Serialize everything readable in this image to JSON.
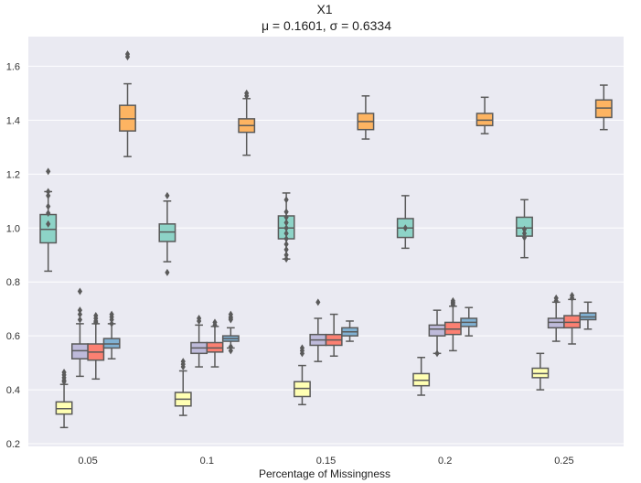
{
  "chart_data": {
    "type": "box",
    "title": "X1",
    "subtitle": "μ = 0.1601, σ = 0.6334",
    "xlabel": "Percentage of Missingness",
    "ylabel": "",
    "ylim": [
      0.19,
      1.71
    ],
    "yticks": [
      0.2,
      0.4,
      0.6,
      0.8,
      1.0,
      1.2,
      1.4,
      1.6
    ],
    "categories": [
      "0.05",
      "0.1",
      "0.15",
      "0.2",
      "0.25"
    ],
    "grid": true,
    "legend": "none",
    "series": [
      {
        "color": "#8dd3c7",
        "boxes": [
          {
            "whislo": 0.84,
            "q1": 0.945,
            "med": 0.995,
            "q3": 1.05,
            "whishi": 1.135,
            "fliers": [
              1.21,
              1.135,
              1.12,
              1.08,
              1.055,
              1.015
            ]
          },
          {
            "whislo": 0.875,
            "q1": 0.95,
            "med": 0.985,
            "q3": 1.015,
            "whishi": 1.1,
            "fliers": [
              1.12,
              0.835
            ]
          },
          {
            "whislo": 0.885,
            "q1": 0.96,
            "med": 1.0,
            "q3": 1.045,
            "whishi": 1.13,
            "fliers": [
              1.105,
              1.06,
              1.04,
              1.02,
              1.0,
              0.98,
              0.96,
              0.94,
              0.92,
              0.9,
              0.885
            ]
          },
          {
            "whislo": 0.925,
            "q1": 0.965,
            "med": 1.0,
            "q3": 1.035,
            "whishi": 1.12,
            "fliers": [
              1.0
            ]
          },
          {
            "whislo": 0.89,
            "q1": 0.97,
            "med": 1.0,
            "q3": 1.04,
            "whishi": 1.105,
            "fliers": [
              0.995,
              0.98,
              0.965
            ]
          }
        ]
      },
      {
        "color": "#ffffb3",
        "boxes": [
          {
            "whislo": 0.26,
            "q1": 0.31,
            "med": 0.33,
            "q3": 0.355,
            "whishi": 0.42,
            "fliers": [
              0.465,
              0.455,
              0.445,
              0.435,
              0.43
            ]
          },
          {
            "whislo": 0.305,
            "q1": 0.34,
            "med": 0.365,
            "q3": 0.39,
            "whishi": 0.47,
            "fliers": [
              0.505,
              0.495,
              0.485
            ]
          },
          {
            "whislo": 0.345,
            "q1": 0.375,
            "med": 0.405,
            "q3": 0.43,
            "whishi": 0.49,
            "fliers": [
              0.555,
              0.545,
              0.535
            ]
          },
          {
            "whislo": 0.38,
            "q1": 0.415,
            "med": 0.435,
            "q3": 0.46,
            "whishi": 0.52,
            "fliers": []
          },
          {
            "whislo": 0.4,
            "q1": 0.445,
            "med": 0.46,
            "q3": 0.48,
            "whishi": 0.535,
            "fliers": []
          }
        ]
      },
      {
        "color": "#bebada",
        "boxes": [
          {
            "whislo": 0.45,
            "q1": 0.515,
            "med": 0.545,
            "q3": 0.57,
            "whishi": 0.645,
            "fliers": [
              0.765,
              0.695,
              0.68,
              0.66
            ]
          },
          {
            "whislo": 0.485,
            "q1": 0.535,
            "med": 0.555,
            "q3": 0.575,
            "whishi": 0.64,
            "fliers": [
              0.665,
              0.655
            ]
          },
          {
            "whislo": 0.505,
            "q1": 0.565,
            "med": 0.585,
            "q3": 0.605,
            "whishi": 0.665,
            "fliers": [
              0.725
            ]
          },
          {
            "whislo": 0.535,
            "q1": 0.6,
            "med": 0.625,
            "q3": 0.64,
            "whishi": 0.695,
            "fliers": [
              0.535
            ]
          },
          {
            "whislo": 0.58,
            "q1": 0.63,
            "med": 0.65,
            "q3": 0.665,
            "whishi": 0.725,
            "fliers": [
              0.74,
              0.73
            ]
          }
        ]
      },
      {
        "color": "#fb8072",
        "boxes": [
          {
            "whislo": 0.44,
            "q1": 0.51,
            "med": 0.54,
            "q3": 0.57,
            "whishi": 0.645,
            "fliers": [
              0.675,
              0.665,
              0.655,
              0.65
            ]
          },
          {
            "whislo": 0.485,
            "q1": 0.54,
            "med": 0.555,
            "q3": 0.575,
            "whishi": 0.635,
            "fliers": [
              0.65,
              0.64
            ]
          },
          {
            "whislo": 0.525,
            "q1": 0.565,
            "med": 0.585,
            "q3": 0.605,
            "whishi": 0.68,
            "fliers": []
          },
          {
            "whislo": 0.545,
            "q1": 0.605,
            "med": 0.625,
            "q3": 0.65,
            "whishi": 0.71,
            "fliers": [
              0.73,
              0.725,
              0.72,
              0.715
            ]
          },
          {
            "whislo": 0.57,
            "q1": 0.63,
            "med": 0.65,
            "q3": 0.675,
            "whishi": 0.735,
            "fliers": [
              0.75,
              0.74
            ]
          }
        ]
      },
      {
        "color": "#80b1d3",
        "boxes": [
          {
            "whislo": 0.515,
            "q1": 0.555,
            "med": 0.57,
            "q3": 0.59,
            "whishi": 0.645,
            "fliers": [
              0.68,
              0.67,
              0.66,
              0.645
            ]
          },
          {
            "whislo": 0.555,
            "q1": 0.58,
            "med": 0.59,
            "q3": 0.6,
            "whishi": 0.63,
            "fliers": [
              0.68,
              0.67,
              0.665,
              0.66,
              0.56,
              0.545
            ]
          },
          {
            "whislo": 0.58,
            "q1": 0.6,
            "med": 0.615,
            "q3": 0.63,
            "whishi": 0.655,
            "fliers": []
          },
          {
            "whislo": 0.6,
            "q1": 0.635,
            "med": 0.65,
            "q3": 0.665,
            "whishi": 0.705,
            "fliers": []
          },
          {
            "whislo": 0.625,
            "q1": 0.66,
            "med": 0.67,
            "q3": 0.685,
            "whishi": 0.725,
            "fliers": []
          }
        ]
      },
      {
        "color": "#fdb462",
        "boxes": [
          {
            "whislo": 1.265,
            "q1": 1.36,
            "med": 1.405,
            "q3": 1.455,
            "whishi": 1.535,
            "fliers": [
              1.645,
              1.635
            ]
          },
          {
            "whislo": 1.27,
            "q1": 1.355,
            "med": 1.38,
            "q3": 1.405,
            "whishi": 1.48,
            "fliers": [
              1.5,
              1.49
            ]
          },
          {
            "whislo": 1.33,
            "q1": 1.365,
            "med": 1.395,
            "q3": 1.425,
            "whishi": 1.49,
            "fliers": []
          },
          {
            "whislo": 1.35,
            "q1": 1.38,
            "med": 1.4,
            "q3": 1.425,
            "whishi": 1.485,
            "fliers": []
          },
          {
            "whislo": 1.365,
            "q1": 1.41,
            "med": 1.445,
            "q3": 1.475,
            "whishi": 1.53,
            "fliers": []
          }
        ]
      }
    ]
  }
}
